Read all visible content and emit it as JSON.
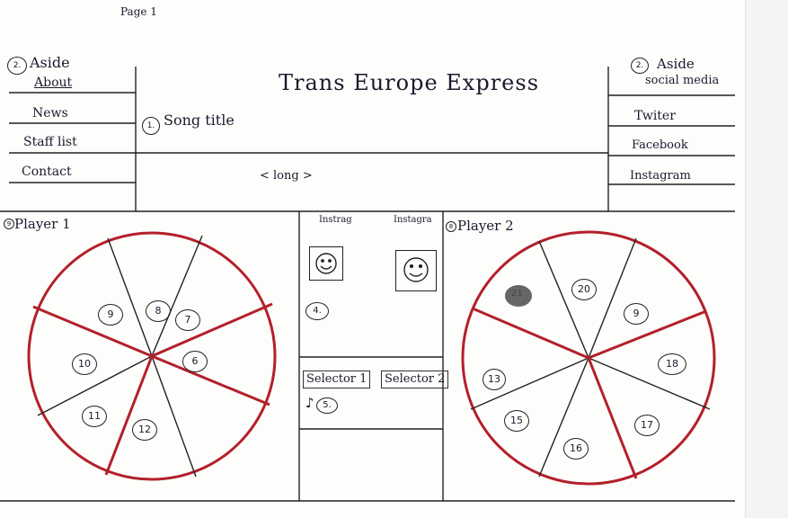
{
  "page_label": "Page 1",
  "aside_left": {
    "marker": "2.",
    "heading": "Aside",
    "items": [
      "About",
      "News",
      "Staff list",
      "Contact"
    ]
  },
  "header": {
    "title": "Trans Europe Express",
    "song_title": "Song title",
    "song_marker": "1.",
    "long_text": "< long >"
  },
  "aside_right": {
    "marker": "2.",
    "heading": "Aside",
    "subheading": "social media",
    "items": [
      "Twiter",
      "Facebook",
      "Instagram"
    ]
  },
  "player1": {
    "marker": "9",
    "label": "Player 1",
    "segments": [
      "9",
      "8",
      "7",
      "6",
      "12",
      "11",
      "10"
    ]
  },
  "middle": {
    "insta_labels": [
      "Instrag",
      "Instagra"
    ],
    "marker4": "4.",
    "selectors": [
      "Selector 1",
      "Selector 2"
    ],
    "marker5": "5."
  },
  "player2": {
    "marker": "8",
    "label": "Player 2",
    "segments": [
      "21",
      "20",
      "9",
      "18",
      "17",
      "16",
      "15",
      "13"
    ]
  },
  "colors": {
    "ink": "#1a1a2e",
    "wheel": "#b3202a",
    "paper": "#fdfdfb"
  }
}
